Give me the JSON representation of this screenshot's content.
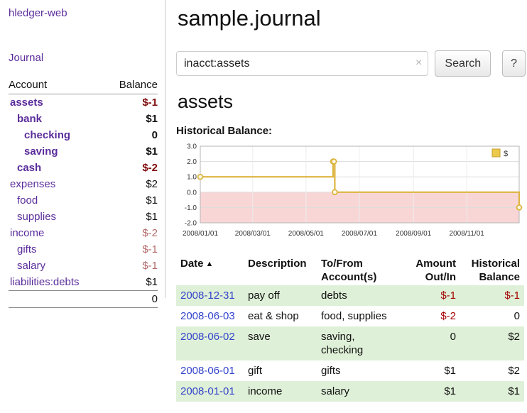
{
  "app": {
    "brand": "hledger-web",
    "nav_journal": "Journal"
  },
  "sidebar": {
    "header": {
      "account": "Account",
      "balance": "Balance"
    },
    "accounts": [
      {
        "name": "assets",
        "indent": 0,
        "bold": true,
        "balance": "$-1",
        "balance_style": "neg-strong"
      },
      {
        "name": "bank",
        "indent": 1,
        "bold": true,
        "balance": "$1",
        "balance_style": ""
      },
      {
        "name": "checking",
        "indent": 2,
        "bold": true,
        "balance": "0",
        "balance_style": ""
      },
      {
        "name": "saving",
        "indent": 2,
        "bold": true,
        "balance": "$1",
        "balance_style": ""
      },
      {
        "name": "cash",
        "indent": 1,
        "bold": true,
        "balance": "$-2",
        "balance_style": "neg-strong"
      },
      {
        "name": "expenses",
        "indent": 0,
        "bold": false,
        "balance": "$2",
        "balance_style": ""
      },
      {
        "name": "food",
        "indent": 1,
        "bold": false,
        "balance": "$1",
        "balance_style": ""
      },
      {
        "name": "supplies",
        "indent": 1,
        "bold": false,
        "balance": "$1",
        "balance_style": ""
      },
      {
        "name": "income",
        "indent": 0,
        "bold": false,
        "balance": "$-2",
        "balance_style": "neg-soft"
      },
      {
        "name": "gifts",
        "indent": 1,
        "bold": false,
        "balance": "$-1",
        "balance_style": "neg-soft"
      },
      {
        "name": "salary",
        "indent": 1,
        "bold": false,
        "balance": "$-1",
        "balance_style": "neg-soft"
      },
      {
        "name": "liabilities:debts",
        "indent": 0,
        "bold": false,
        "balance": "$1",
        "balance_style": ""
      }
    ],
    "total": "0"
  },
  "main": {
    "title": "sample.journal",
    "search": {
      "value": "inacct:assets",
      "clear_icon": "×",
      "button": "Search",
      "help_button": "?"
    },
    "heading": "assets",
    "chart_label": "Historical Balance:"
  },
  "chart_data": {
    "type": "line",
    "style": "step",
    "title": "Historical Balance",
    "series": [
      {
        "name": "$",
        "color": "#ddb540",
        "points": [
          {
            "date": "2008-01-01",
            "value": 1
          },
          {
            "date": "2008-06-01",
            "value": 2
          },
          {
            "date": "2008-06-02",
            "value": 2
          },
          {
            "date": "2008-06-03",
            "value": 0
          },
          {
            "date": "2008-12-31",
            "value": -1
          }
        ]
      }
    ],
    "xrange": [
      "2008-01-01",
      "2008-12-31"
    ],
    "xticks": [
      "2008/01/01",
      "2008/03/01",
      "2008/05/01",
      "2008/07/01",
      "2008/09/01",
      "2008/11/01"
    ],
    "ylim": [
      -2,
      3
    ],
    "yticks": [
      -2,
      -1,
      0,
      1,
      2,
      3
    ],
    "legend_label": "$",
    "legend_position": "top-right",
    "grid": true,
    "negative_fill": "#f9d6d6",
    "border_color": "#b5b5b5",
    "grid_color": "#dcdcdc"
  },
  "register": {
    "columns": [
      {
        "line1": "Date",
        "line2": "",
        "align": "left",
        "sortable": true,
        "sort_indicator": "▲"
      },
      {
        "line1": "Description",
        "line2": "",
        "align": "left"
      },
      {
        "line1": "To/From",
        "line2": "Account(s)",
        "align": "left"
      },
      {
        "line1": "Amount",
        "line2": "Out/In",
        "align": "right"
      },
      {
        "line1": "Historical",
        "line2": "Balance",
        "align": "right"
      }
    ],
    "rows": [
      {
        "date": "2008-12-31",
        "description": "pay off",
        "accounts": "debts",
        "amount": "$-1",
        "amount_neg": true,
        "balance": "$-1",
        "balance_neg": true
      },
      {
        "date": "2008-06-03",
        "description": "eat & shop",
        "accounts": "food, supplies",
        "amount": "$-2",
        "amount_neg": true,
        "balance": "0",
        "balance_neg": false
      },
      {
        "date": "2008-06-02",
        "description": "save",
        "accounts": "saving, checking",
        "amount": "0",
        "amount_neg": false,
        "balance": "$2",
        "balance_neg": false
      },
      {
        "date": "2008-06-01",
        "description": "gift",
        "accounts": "gifts",
        "amount": "$1",
        "amount_neg": false,
        "balance": "$2",
        "balance_neg": false
      },
      {
        "date": "2008-01-01",
        "description": "income",
        "accounts": "salary",
        "amount": "$1",
        "amount_neg": false,
        "balance": "$1",
        "balance_neg": false
      }
    ]
  },
  "colors": {
    "purple_link": "#5b2d9b",
    "date_link": "#3344cc",
    "neg_strong": "#7f0c0c",
    "neg_soft": "#b46969",
    "neg_table": "#a40000",
    "row_green": "#dff0d8",
    "chart_gold": "#ddb540",
    "chart_pink": "#f9d6d6"
  }
}
